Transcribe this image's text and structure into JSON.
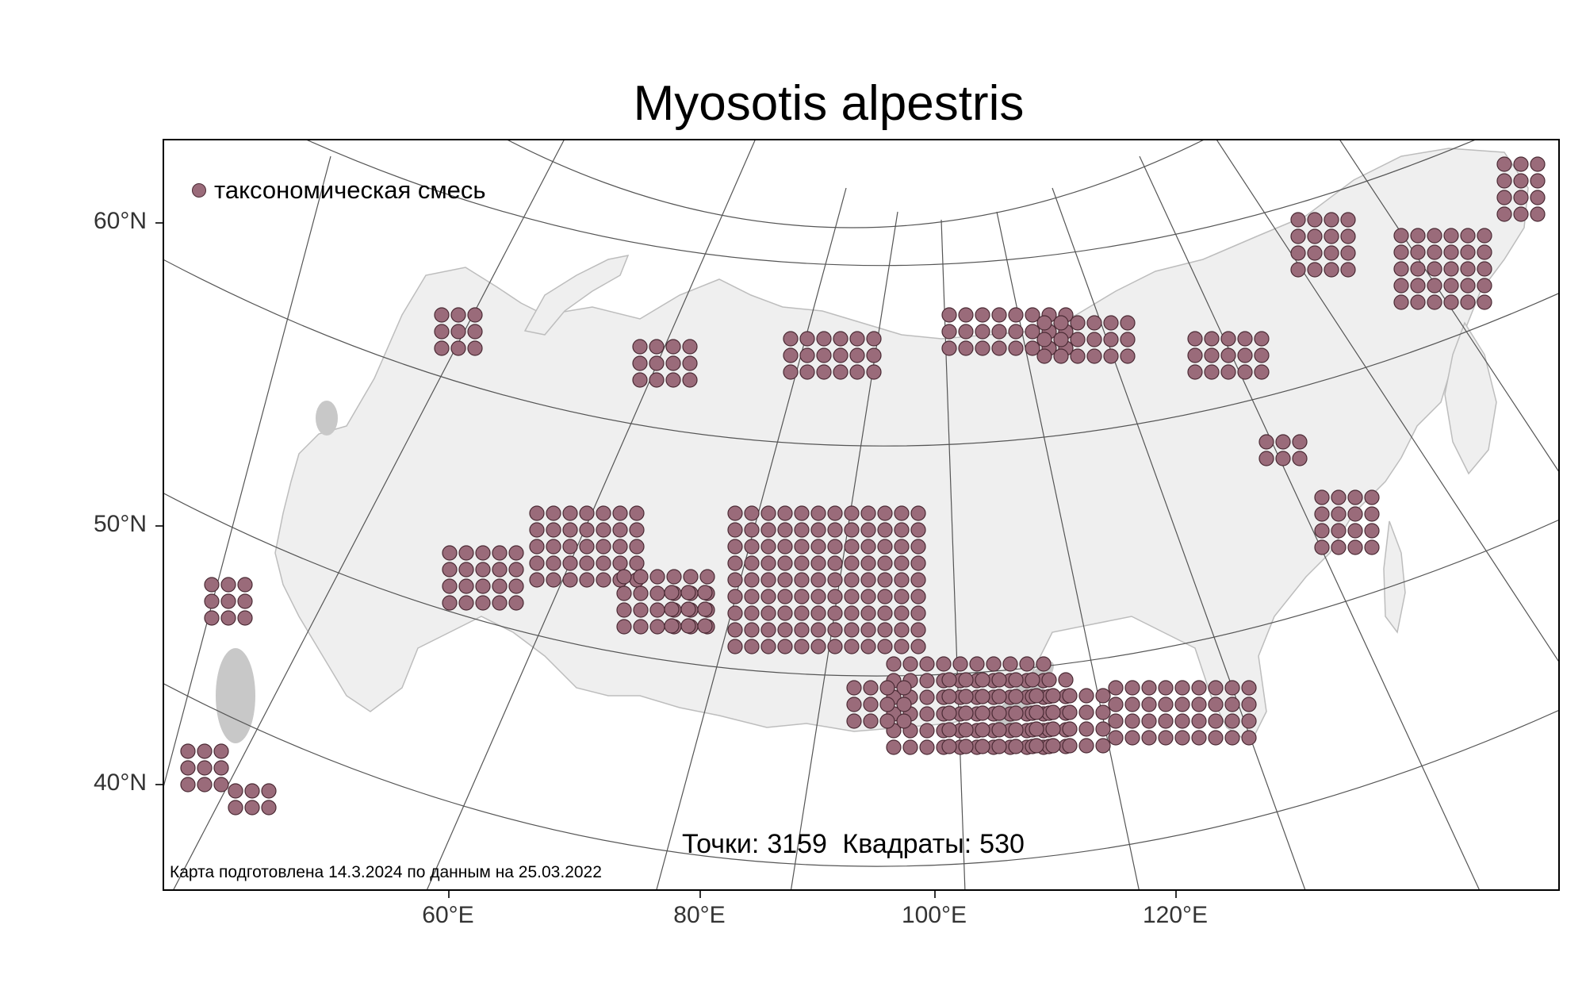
{
  "map": {
    "title": "Myosotis alpestris",
    "legend": {
      "label": "таксономическая смесь",
      "color": "#9a6b7a"
    },
    "stats": {
      "points_label": "Точки:",
      "points": "3159",
      "squares_label": "Квадраты:",
      "squares": "530"
    },
    "footnote": "Карта подготовлена 14.3.2024 по данным на 25.03.2022",
    "lat_labels": [
      "60°N",
      "50°N",
      "40°N"
    ],
    "lon_labels": [
      "60°E",
      "80°E",
      "100°E",
      "120°E"
    ],
    "colors": {
      "dot": "#9a6b7a",
      "dot_border": "#4a2a34",
      "land": "#efefef",
      "water": "#c8c8c8",
      "graticule": "#555555"
    }
  }
}
